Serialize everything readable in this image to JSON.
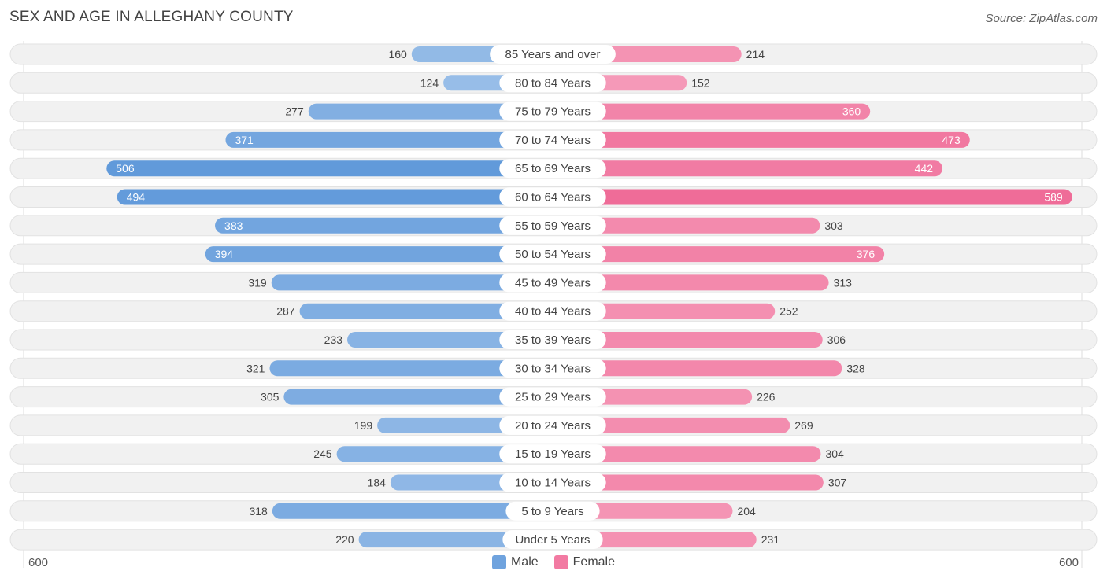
{
  "title": "SEX AND AGE IN ALLEGHANY COUNTY",
  "source": "Source: ZipAtlas.com",
  "colors": {
    "male_light": "#a9c8ec",
    "male_dark": "#5f99da",
    "female_light": "#f7a9c3",
    "female_dark": "#ef6b97",
    "row_bg": "#f1f1f1",
    "row_border": "#e2e2e2"
  },
  "legend": {
    "male": "Male",
    "female": "Female"
  },
  "axis": {
    "left_label": "600",
    "right_label": "600"
  },
  "chart_data": {
    "type": "bar",
    "orientation": "horizontal-butterfly",
    "title": "SEX AND AGE IN ALLEGHANY COUNTY",
    "xlim": [
      0,
      600
    ],
    "categories": [
      "85 Years and over",
      "80 to 84 Years",
      "75 to 79 Years",
      "70 to 74 Years",
      "65 to 69 Years",
      "60 to 64 Years",
      "55 to 59 Years",
      "50 to 54 Years",
      "45 to 49 Years",
      "40 to 44 Years",
      "35 to 39 Years",
      "30 to 34 Years",
      "25 to 29 Years",
      "20 to 24 Years",
      "15 to 19 Years",
      "10 to 14 Years",
      "5 to 9 Years",
      "Under 5 Years"
    ],
    "series": [
      {
        "name": "Male",
        "values": [
          160,
          124,
          277,
          371,
          506,
          494,
          383,
          394,
          319,
          287,
          233,
          321,
          305,
          199,
          245,
          184,
          318,
          220
        ]
      },
      {
        "name": "Female",
        "values": [
          214,
          152,
          360,
          473,
          442,
          589,
          303,
          376,
          313,
          252,
          306,
          328,
          226,
          269,
          304,
          307,
          204,
          231
        ]
      }
    ]
  }
}
